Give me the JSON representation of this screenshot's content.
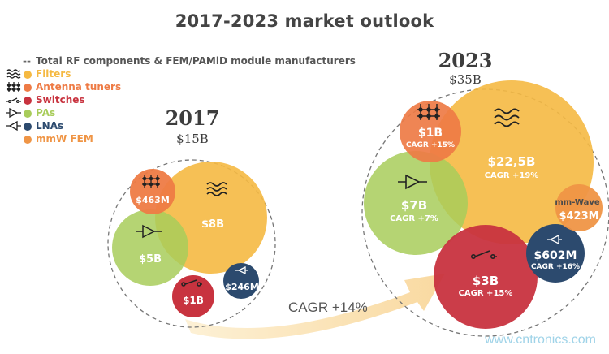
{
  "title": "2017-2023 market outlook",
  "legend": {
    "total": "Total RF components & FEM/PAMiD module manufacturers",
    "items": [
      {
        "label": "Filters",
        "color": "#f5b942",
        "icon": "filter-icon"
      },
      {
        "label": "Antenna tuners",
        "color": "#ee7b45",
        "icon": "antenna-tuner-icon"
      },
      {
        "label": "Switches",
        "color": "#c8333f",
        "icon": "switch-icon"
      },
      {
        "label": "PAs",
        "color": "#a8cc5a",
        "icon": "pa-amplifier-icon"
      },
      {
        "label": "LNAs",
        "color": "#2c4a6e",
        "icon": "lna-icon"
      },
      {
        "label": "mmW FEM",
        "color": "#ef9546",
        "icon": ""
      }
    ]
  },
  "y2017": {
    "year": "2017",
    "total": "$15B",
    "bubbles": {
      "filters": {
        "value": "$8B"
      },
      "tuners": {
        "value": "$463M"
      },
      "pas": {
        "value": "$5B"
      },
      "switches": {
        "value": "$1B"
      },
      "lnas": {
        "value": "$246M"
      }
    }
  },
  "y2023": {
    "year": "2023",
    "total": "$35B",
    "bubbles": {
      "filters": {
        "value": "$22,5B",
        "cagr": "CAGR +19%"
      },
      "tuners": {
        "value": "$1B",
        "cagr": "CAGR +15%"
      },
      "pas": {
        "value": "$7B",
        "cagr": "CAGR +7%"
      },
      "switches": {
        "value": "$3B",
        "cagr": "CAGR +15%"
      },
      "lnas": {
        "value": "$602M",
        "cagr": "CAGR +16%"
      },
      "mmw": {
        "name": "mm-Wave",
        "value": "$423M"
      }
    }
  },
  "arrow": {
    "label": "CAGR +14%"
  },
  "watermark": "www.cntronics.com"
}
